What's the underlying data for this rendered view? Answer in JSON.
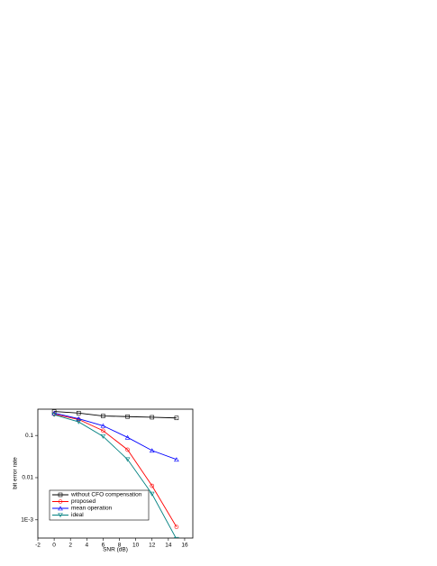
{
  "chart_data": {
    "type": "line",
    "xlabel": "SNR (dB)",
    "ylabel": "bit error rate",
    "x": [
      0,
      3,
      6,
      9,
      12,
      15
    ],
    "series": [
      {
        "name": "without CFO compensation",
        "color": "#000000",
        "marker": "square",
        "values": [
          0.37,
          0.34,
          0.29,
          0.28,
          0.27,
          0.26
        ]
      },
      {
        "name": "proposed",
        "color": "#ff0000",
        "marker": "circle",
        "values": [
          0.32,
          0.24,
          0.13,
          0.046,
          0.0064,
          0.00068
        ]
      },
      {
        "name": "mean operation",
        "color": "#0000ff",
        "marker": "triangle-up",
        "values": [
          0.34,
          0.25,
          0.17,
          0.09,
          0.044,
          0.027
        ]
      },
      {
        "name": "ideal",
        "color": "#008080",
        "marker": "triangle-down",
        "values": [
          0.31,
          0.21,
          0.095,
          0.027,
          0.0041,
          0.00035
        ]
      }
    ],
    "xlim": [
      -2,
      17
    ],
    "xticks": [
      -2,
      0,
      2,
      4,
      6,
      8,
      10,
      12,
      14,
      16
    ],
    "ylim": [
      0.00037,
      0.42
    ],
    "yticks": [
      0.1,
      0.01,
      {
        "value": 0.001,
        "label": "1E-3"
      }
    ],
    "ylog": true,
    "grid": false,
    "legend": "lower-left"
  }
}
